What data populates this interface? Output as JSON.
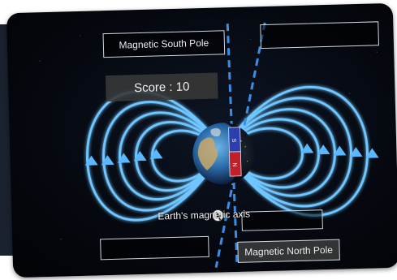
{
  "labels": {
    "top_left": "Magnetic South Pole",
    "top_right": "",
    "bottom_left": "",
    "bottom_right": "Magnetic North Pole",
    "middle_right": ""
  },
  "score": {
    "text": "Score : 10"
  },
  "axis": {
    "label": "Earth's magnetic axis"
  },
  "magnet": {
    "top_pole": "S",
    "bottom_pole": "N"
  },
  "colors": {
    "field_line": "#6fc6ff",
    "field_glow": "#2a8fe0",
    "magnet_south": "#2b3fb0",
    "magnet_north": "#c0202a",
    "axis_dash": "#3b8ee8"
  },
  "icons": {
    "arrow": "triangle-arrow-icon",
    "cursor": "touch-cursor-icon"
  }
}
